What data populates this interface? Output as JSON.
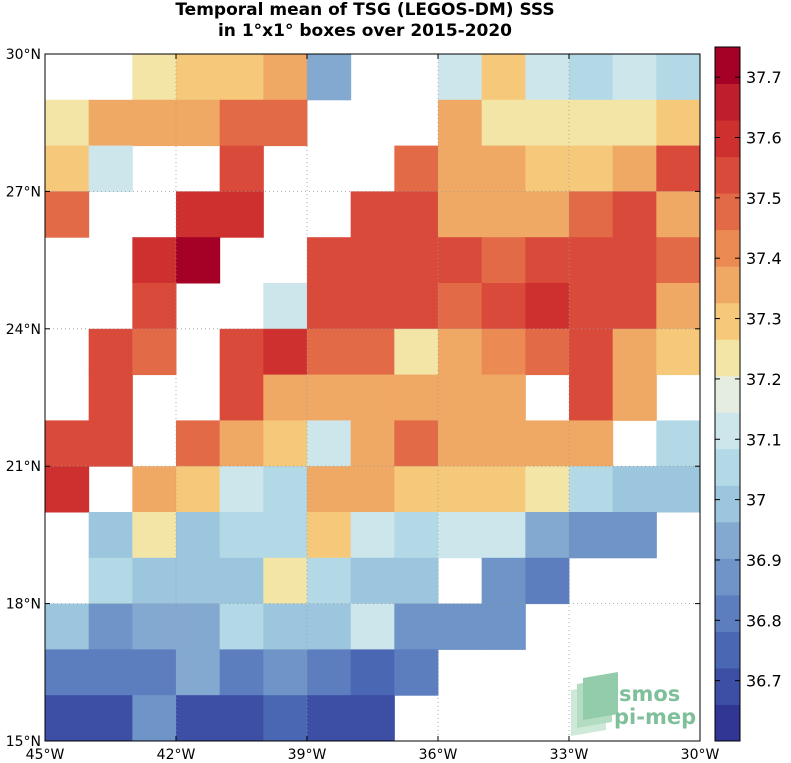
{
  "title": {
    "line1": "Temporal mean of TSG (LEGOS-DM) SSS",
    "line2": "in 1°x1° boxes over 2015-2020"
  },
  "logo": {
    "line1": "smos",
    "line2": "pi-mep",
    "color": "#7fbf9a"
  },
  "chart_data": {
    "type": "heatmap",
    "title": "Temporal mean of TSG (LEGOS-DM) SSS in 1°x1° boxes over 2015-2020",
    "x_axis": {
      "range": [
        -45,
        -30
      ],
      "ticks": [
        -45,
        -42,
        -39,
        -36,
        -33,
        -30
      ],
      "tick_labels": [
        "45°W",
        "42°W",
        "39°W",
        "36°W",
        "33°W",
        "30°W"
      ]
    },
    "y_axis": {
      "range": [
        15,
        30
      ],
      "ticks": [
        15,
        18,
        21,
        24,
        27,
        30
      ],
      "tick_labels": [
        "15°N",
        "18°N",
        "21°N",
        "24°N",
        "27°N",
        "30°N"
      ]
    },
    "grid": true,
    "cell_size_deg": 1,
    "colorbar": {
      "range": [
        36.6,
        37.75
      ],
      "ticks": [
        36.7,
        36.8,
        36.9,
        37.0,
        37.1,
        37.2,
        37.3,
        37.4,
        37.5,
        37.6,
        37.7
      ],
      "tick_labels": [
        "36.7",
        "36.8",
        "36.9",
        "37",
        "37.1",
        "37.2",
        "37.3",
        "37.4",
        "37.5",
        "37.6",
        "37.7"
      ],
      "colors": [
        "#313695",
        "#3d4fa5",
        "#4a67b3",
        "#5c7ebf",
        "#6e94c8",
        "#83a9d1",
        "#9bc6dd",
        "#b4d9e6",
        "#cce6ec",
        "#e4ede0",
        "#f3e5a6",
        "#f5c87a",
        "#f0a965",
        "#eb8a52",
        "#e36a46",
        "#da4a3b",
        "#ce3030",
        "#bf1e2d",
        "#a50026"
      ]
    },
    "rows_lat_top": [
      30,
      29,
      28,
      27,
      26,
      25,
      24,
      23,
      22,
      21,
      20,
      19,
      18,
      17,
      16
    ],
    "cols_lon_left": [
      -45,
      -44,
      -43,
      -42,
      -41,
      -40,
      -39,
      -38,
      -37,
      -36,
      -35,
      -34,
      -33,
      -32,
      -31
    ],
    "values": [
      [
        null,
        null,
        37.21,
        37.28,
        37.28,
        37.33,
        36.94,
        null,
        null,
        37.14,
        37.27,
        37.14,
        37.05,
        37.14,
        37.07
      ],
      [
        37.21,
        37.33,
        37.33,
        37.38,
        37.45,
        37.45,
        null,
        null,
        null,
        37.38,
        37.21,
        37.21,
        37.21,
        37.21,
        37.27
      ],
      [
        37.27,
        37.12,
        null,
        null,
        37.53,
        null,
        null,
        null,
        37.45,
        37.38,
        37.33,
        37.27,
        37.27,
        37.38,
        37.51
      ],
      [
        37.45,
        null,
        null,
        37.62,
        37.58,
        null,
        null,
        37.51,
        37.51,
        37.38,
        37.38,
        37.38,
        37.45,
        37.54,
        37.38
      ],
      [
        null,
        null,
        37.62,
        37.72,
        null,
        null,
        37.54,
        37.56,
        37.51,
        37.51,
        37.45,
        37.52,
        37.56,
        37.51,
        37.45
      ],
      [
        null,
        null,
        37.55,
        null,
        null,
        37.12,
        37.56,
        37.51,
        37.51,
        37.45,
        37.51,
        37.58,
        37.51,
        37.51,
        37.38
      ],
      [
        null,
        37.54,
        37.49,
        null,
        37.54,
        37.58,
        37.45,
        37.45,
        37.26,
        37.38,
        37.43,
        37.49,
        37.55,
        37.38,
        37.29
      ],
      [
        null,
        37.51,
        null,
        null,
        37.53,
        37.38,
        37.38,
        37.33,
        37.38,
        37.38,
        37.33,
        null,
        37.51,
        37.38,
        null
      ],
      [
        37.51,
        37.51,
        null,
        37.45,
        37.38,
        37.27,
        37.14,
        37.33,
        37.45,
        37.38,
        37.33,
        37.33,
        37.38,
        null,
        37.03
      ],
      [
        37.62,
        null,
        37.38,
        37.27,
        37.14,
        37.03,
        37.33,
        37.33,
        37.27,
        37.27,
        37.27,
        37.21,
        37.07,
        36.97,
        36.97
      ],
      [
        null,
        36.97,
        37.21,
        37.0,
        37.07,
        37.07,
        37.27,
        37.14,
        37.07,
        37.14,
        37.14,
        36.94,
        36.87,
        36.87,
        null
      ],
      [
        null,
        37.07,
        36.97,
        36.97,
        37.0,
        37.21,
        37.07,
        37.0,
        37.0,
        null,
        36.87,
        36.81,
        null,
        null,
        null
      ],
      [
        36.97,
        36.87,
        36.94,
        36.94,
        37.03,
        36.97,
        36.97,
        37.14,
        36.9,
        36.87,
        36.87,
        null,
        null,
        null,
        null
      ],
      [
        36.84,
        36.84,
        36.84,
        36.94,
        36.81,
        36.87,
        36.81,
        36.76,
        36.84,
        null,
        null,
        null,
        null,
        null,
        null
      ],
      [
        36.72,
        36.72,
        36.9,
        36.7,
        36.7,
        36.75,
        36.72,
        36.72,
        null,
        null,
        null,
        null,
        null,
        null,
        null
      ]
    ]
  }
}
